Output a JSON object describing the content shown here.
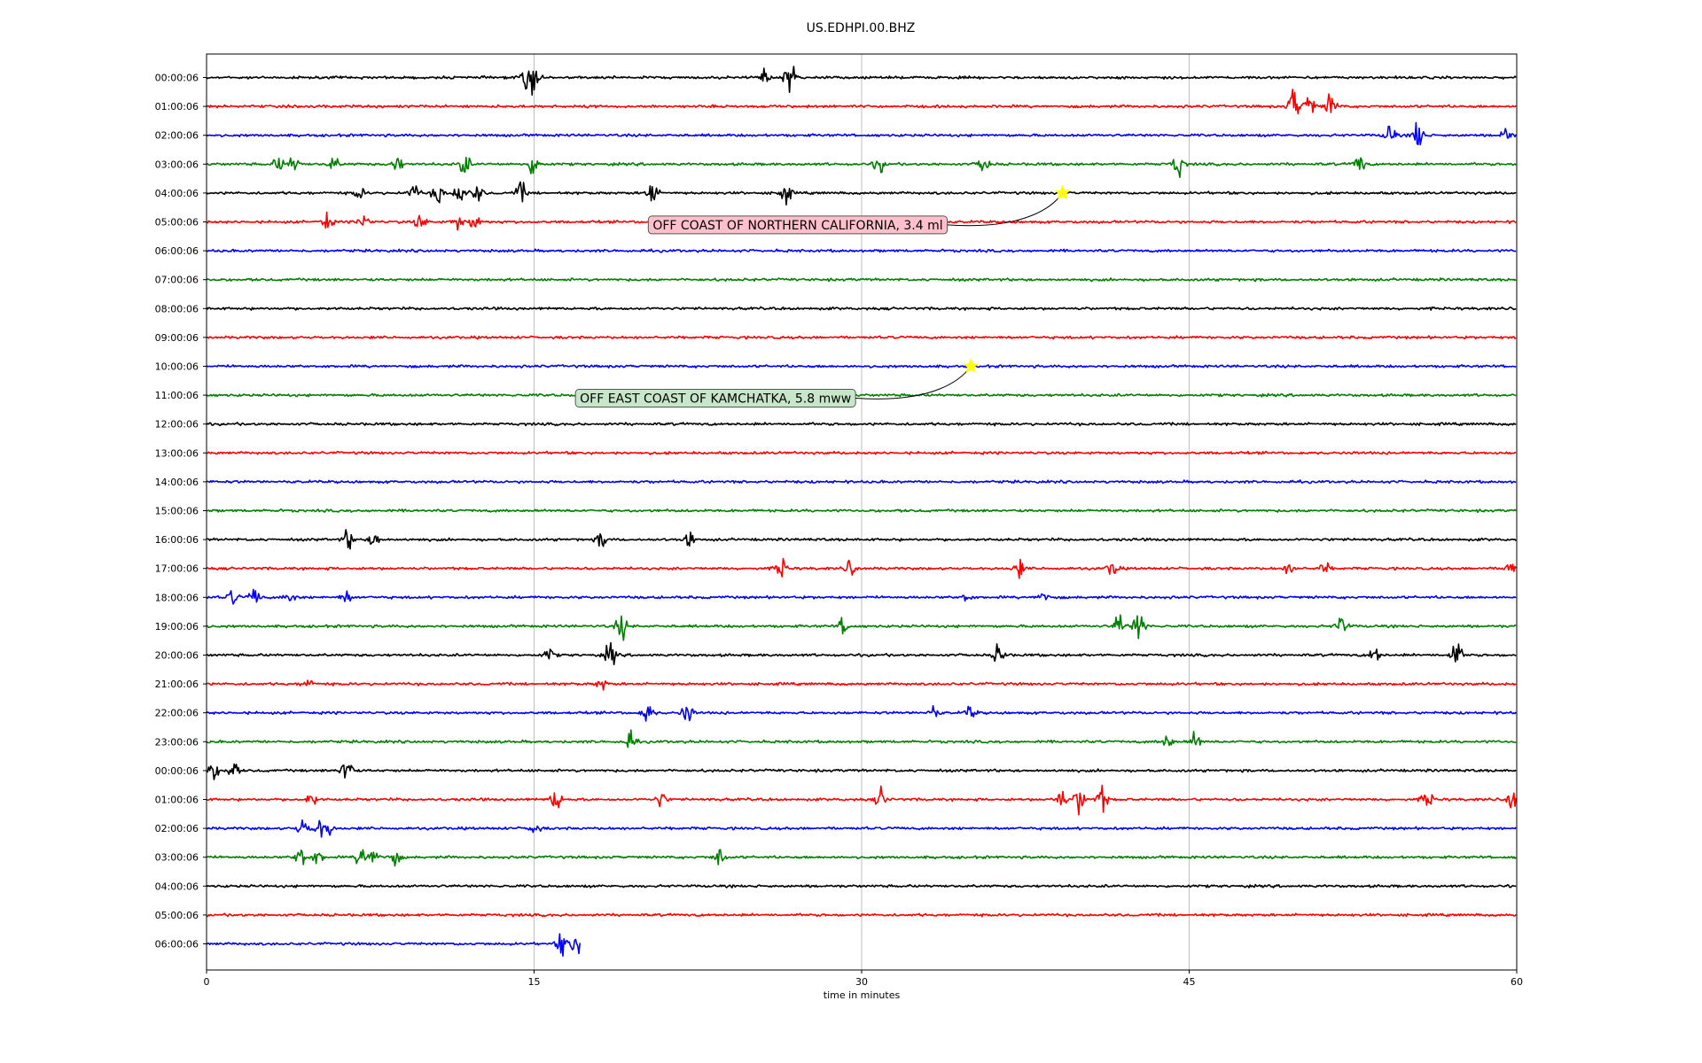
{
  "chart_data": {
    "type": "line",
    "title": "US.EDHPI.00.BHZ",
    "xlabel": "time in minutes",
    "ylabel": "",
    "xlim": [
      0,
      60
    ],
    "xticks": [
      0,
      15,
      30,
      45,
      60
    ],
    "xtick_labels": [
      "0",
      "15",
      "30",
      "45",
      "60"
    ],
    "grid": "vertical lines at x ticks",
    "row_colors": [
      "#000000",
      "#ff0000",
      "#0000ff",
      "#008000"
    ],
    "rows": [
      {
        "label": "00:00:06",
        "end": 60,
        "events": [
          [
            15,
            1.1
          ],
          [
            26.7,
            1.3
          ],
          [
            14.6,
            0.6
          ],
          [
            25.5,
            0.5
          ]
        ]
      },
      {
        "label": "01:00:06",
        "end": 60,
        "events": [
          [
            49.8,
            1.3
          ],
          [
            50.5,
            0.8
          ],
          [
            51.5,
            0.9
          ]
        ]
      },
      {
        "label": "02:00:06",
        "end": 60,
        "events": [
          [
            55.5,
            1.1
          ],
          [
            54.2,
            0.7
          ],
          [
            59.5,
            0.6
          ]
        ]
      },
      {
        "label": "03:00:06",
        "end": 60,
        "events": [
          [
            3.3,
            0.5
          ],
          [
            4,
            0.5
          ],
          [
            5.8,
            0.5
          ],
          [
            8.7,
            0.7
          ],
          [
            11.8,
            0.8
          ],
          [
            15,
            0.9
          ],
          [
            30.8,
            0.5
          ],
          [
            35.6,
            0.6
          ],
          [
            44.5,
            0.9
          ],
          [
            52.8,
            0.7
          ]
        ]
      },
      {
        "label": "04:00:06",
        "end": 60,
        "events": [
          [
            7,
            0.4
          ],
          [
            9.5,
            0.5
          ],
          [
            10.6,
            0.8
          ],
          [
            11.6,
            1.0
          ],
          [
            12.4,
            0.6
          ],
          [
            20.4,
            0.9
          ],
          [
            26.5,
            0.8
          ],
          [
            14.4,
            0.6
          ]
        ]
      },
      {
        "label": "05:00:06",
        "end": 60,
        "events": [
          [
            5.5,
            0.7
          ],
          [
            7.2,
            0.6
          ],
          [
            9.8,
            0.6
          ],
          [
            11.5,
            0.5
          ],
          [
            12.3,
            0.6
          ]
        ]
      },
      {
        "label": "06:00:06",
        "end": 60,
        "events": []
      },
      {
        "label": "07:00:06",
        "end": 60,
        "events": []
      },
      {
        "label": "08:00:06",
        "end": 60,
        "events": []
      },
      {
        "label": "09:00:06",
        "end": 60,
        "events": []
      },
      {
        "label": "10:00:06",
        "end": 60,
        "events": []
      },
      {
        "label": "11:00:06",
        "end": 60,
        "events": []
      },
      {
        "label": "12:00:06",
        "end": 60,
        "events": []
      },
      {
        "label": "13:00:06",
        "end": 60,
        "events": []
      },
      {
        "label": "14:00:06",
        "end": 60,
        "events": []
      },
      {
        "label": "15:00:06",
        "end": 60,
        "events": []
      },
      {
        "label": "16:00:06",
        "end": 60,
        "events": [
          [
            6.5,
            0.6
          ],
          [
            7.7,
            0.6
          ],
          [
            18.1,
            0.5
          ],
          [
            22.1,
            0.5
          ]
        ]
      },
      {
        "label": "17:00:06",
        "end": 60,
        "events": [
          [
            26.3,
            0.7
          ],
          [
            29.5,
            0.5
          ],
          [
            37.2,
            0.6
          ],
          [
            41.5,
            0.5
          ],
          [
            49.6,
            0.4
          ],
          [
            51.2,
            0.4
          ],
          [
            59.7,
            0.5
          ]
        ]
      },
      {
        "label": "18:00:06",
        "end": 60,
        "events": [
          [
            1.2,
            0.5
          ],
          [
            2.2,
            0.6
          ],
          [
            3.8,
            0.5
          ],
          [
            6.4,
            0.4
          ],
          [
            38.3,
            0.5
          ],
          [
            34.8,
            0.3
          ]
        ]
      },
      {
        "label": "19:00:06",
        "end": 60,
        "events": [
          [
            19,
            0.8
          ],
          [
            29.2,
            0.6
          ],
          [
            41.8,
            0.8
          ],
          [
            42.7,
            1.2
          ],
          [
            52,
            0.8
          ]
        ]
      },
      {
        "label": "20:00:06",
        "end": 60,
        "events": [
          [
            15.7,
            0.4
          ],
          [
            18.5,
            0.8
          ],
          [
            36.3,
            0.8
          ],
          [
            53.5,
            0.6
          ],
          [
            57.2,
            1.1
          ]
        ]
      },
      {
        "label": "21:00:06",
        "end": 60,
        "events": [
          [
            4.6,
            0.4
          ],
          [
            18.1,
            0.4
          ]
        ]
      },
      {
        "label": "22:00:06",
        "end": 60,
        "events": [
          [
            20.2,
            0.8
          ],
          [
            22,
            0.7
          ],
          [
            33.3,
            0.4
          ],
          [
            35,
            0.4
          ]
        ]
      },
      {
        "label": "23:00:06",
        "end": 60,
        "events": [
          [
            19.4,
            0.6
          ],
          [
            44,
            0.5
          ],
          [
            45.3,
            0.6
          ]
        ]
      },
      {
        "label": "00:00:06",
        "end": 60,
        "events": [
          [
            0.3,
            0.6
          ],
          [
            1.2,
            0.6
          ],
          [
            6.4,
            1.3
          ]
        ]
      },
      {
        "label": "01:00:06",
        "end": 60,
        "events": [
          [
            4.8,
            0.5
          ],
          [
            16,
            0.8
          ],
          [
            20.8,
            0.5
          ],
          [
            30.9,
            0.7
          ],
          [
            39.1,
            0.8
          ],
          [
            40,
            1.0
          ],
          [
            41,
            0.9
          ],
          [
            55.9,
            0.6
          ],
          [
            59.8,
            0.8
          ]
        ]
      },
      {
        "label": "02:00:06",
        "end": 60,
        "events": [
          [
            4.4,
            0.6
          ],
          [
            5.1,
            0.6
          ],
          [
            5.5,
            0.6
          ],
          [
            15,
            0.5
          ]
        ]
      },
      {
        "label": "03:00:06",
        "end": 60,
        "events": [
          [
            4.3,
            0.9
          ],
          [
            5.1,
            0.5
          ],
          [
            7.1,
            0.8
          ],
          [
            7.7,
            0.6
          ],
          [
            8.6,
            0.5
          ],
          [
            23.5,
            0.6
          ]
        ]
      },
      {
        "label": "04:00:06",
        "end": 60,
        "events": []
      },
      {
        "label": "05:00:06",
        "end": 60,
        "events": []
      },
      {
        "label": "06:00:06",
        "end": 17.1,
        "events": [
          [
            16.3,
            0.8
          ],
          [
            16.9,
            0.7
          ]
        ]
      }
    ],
    "annotations": [
      {
        "text": "OFF COAST OF NORTHERN CALIFORNIA, 3.4 ml",
        "row": 4,
        "x": 39.2,
        "box_color": "#ffc0cb",
        "marker_color": "#ffff00"
      },
      {
        "text": "OFF EAST COAST OF KAMCHATKA, 5.8 mww",
        "row": 10,
        "x": 35.0,
        "box_color": "#c8e6c9",
        "marker_color": "#ffff00"
      }
    ]
  }
}
